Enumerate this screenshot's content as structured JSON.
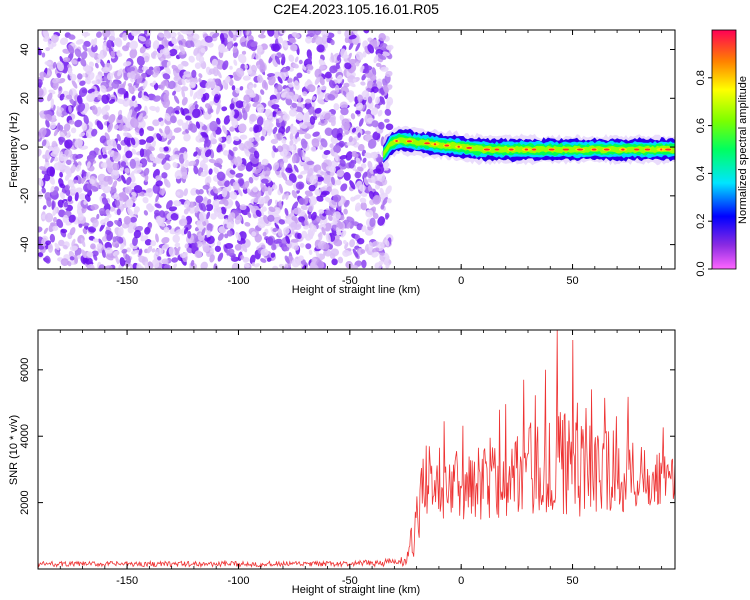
{
  "page": {
    "title": "C2E4.2023.105.16.01.R05"
  },
  "chart_data": [
    {
      "type": "heatmap",
      "title": "C2E4.2023.105.16.01.R05",
      "xlabel": "Height of straight line (km)",
      "ylabel": "Frequency (Hz)",
      "xlim": [
        -190,
        96
      ],
      "ylim": [
        -50,
        48
      ],
      "xticks": [
        -150,
        -100,
        -50,
        0,
        50
      ],
      "yticks": [
        -40,
        -20,
        0,
        20,
        40
      ],
      "noise_region_x": [
        -190,
        -32
      ],
      "signal_line": {
        "x": [
          -35,
          -32,
          -28,
          -20,
          -10,
          0,
          10,
          20,
          30,
          40,
          50,
          60,
          70,
          80,
          90,
          96
        ],
        "frequency": [
          -3,
          1,
          3,
          2,
          1,
          0,
          -1,
          -1,
          -1,
          -1,
          -1,
          -1,
          -1,
          -1,
          -1,
          -1
        ]
      },
      "colorbar": {
        "label": "Normalized spectral amplitude",
        "range": [
          0.0,
          1.0
        ],
        "ticks": [
          0.0,
          0.2,
          0.4,
          0.6,
          0.8
        ],
        "colormap": "gist_rainbow"
      }
    },
    {
      "type": "line",
      "xlabel": "Height of straight line (km)",
      "ylabel": "SNR (10 * v/v)",
      "xlim": [
        -190,
        96
      ],
      "ylim": [
        0,
        7200
      ],
      "xticks": [
        -150,
        -100,
        -50,
        0,
        50
      ],
      "yticks": [
        2000,
        4000,
        6000
      ],
      "color": "#ee3333",
      "series_profile": {
        "x": [
          -190,
          -50,
          -25,
          -20,
          -16,
          -12,
          -5,
          0,
          10,
          20,
          30,
          40,
          43,
          50,
          60,
          70,
          80,
          90,
          96
        ],
        "envelope_mean": [
          150,
          150,
          220,
          1200,
          2500,
          2700,
          2600,
          2500,
          2700,
          2800,
          3000,
          3100,
          3200,
          3000,
          3000,
          2900,
          2900,
          2800,
          2700
        ],
        "envelope_spread": [
          80,
          80,
          150,
          900,
          1300,
          1200,
          1100,
          1100,
          1200,
          1300,
          1400,
          1500,
          1600,
          1500,
          1400,
          1300,
          1100,
          900,
          700
        ]
      },
      "peaks": [
        {
          "x": 43,
          "y": 7200
        },
        {
          "x": 50,
          "y": 6900
        },
        {
          "x": 28,
          "y": 5700
        }
      ]
    }
  ]
}
